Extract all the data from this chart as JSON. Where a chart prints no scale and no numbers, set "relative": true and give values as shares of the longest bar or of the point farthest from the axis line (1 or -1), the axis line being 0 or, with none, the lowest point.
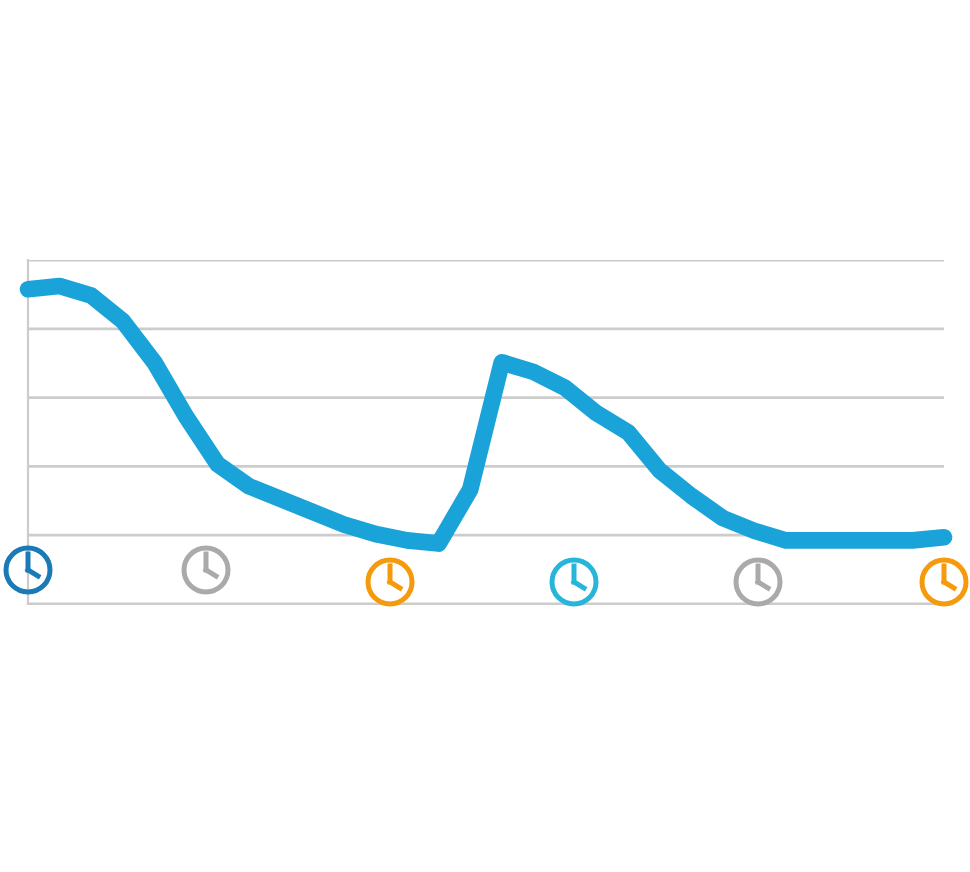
{
  "chart_data": {
    "type": "line",
    "relative": true,
    "grid": "y",
    "legend": false,
    "marker": "none",
    "line_style": "solid",
    "categories": [
      null,
      null,
      null,
      null,
      null,
      null,
      null,
      null,
      null,
      null,
      null,
      null,
      null,
      null,
      null,
      null,
      null,
      null,
      null,
      null,
      null,
      null,
      null,
      null,
      null,
      null,
      null,
      null,
      null,
      null
    ],
    "series": [
      {
        "color": "#1aa3d9",
        "values": [
          0.99,
          1.0,
          0.97,
          0.89,
          0.76,
          0.59,
          0.44,
          0.37,
          0.33,
          0.29,
          0.25,
          0.22,
          0.2,
          0.19,
          0.36,
          0.76,
          0.73,
          0.68,
          0.6,
          0.54,
          0.42,
          0.34,
          0.27,
          0.23,
          0.2,
          0.2,
          0.2,
          0.2,
          0.2,
          0.21
        ]
      }
    ]
  }
}
